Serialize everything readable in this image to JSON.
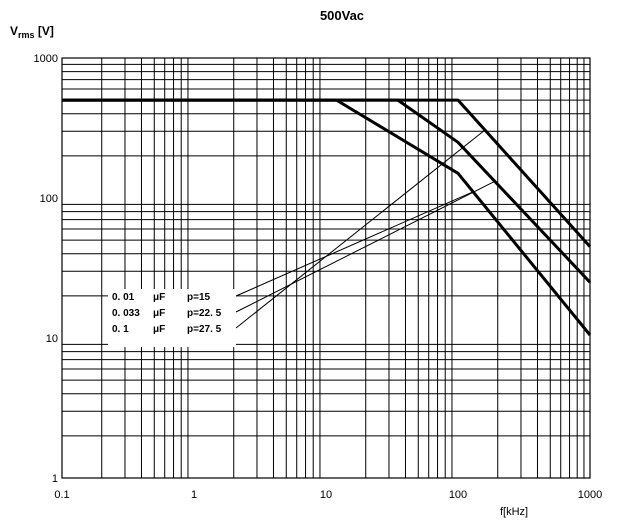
{
  "chart_data": {
    "type": "line",
    "title": "500Vac",
    "ylabel_main": "V",
    "ylabel_sub": "rms",
    "ylabel_unit": " [V]",
    "xlabel": "f[kHz]",
    "x_scale": "log",
    "y_scale": "log",
    "xlim": [
      0.1,
      1000
    ],
    "ylim": [
      1,
      1000
    ],
    "x_ticks": [
      "0.1",
      "1",
      "10",
      "100",
      "1000"
    ],
    "y_ticks": [
      "1",
      "10",
      "100",
      "1000"
    ],
    "grid": true,
    "series": [
      {
        "x": [
          0.1,
          12,
          100,
          1000
        ],
        "y": [
          500,
          500,
          150,
          10.5
        ]
      },
      {
        "x": [
          0.1,
          35,
          100,
          1000
        ],
        "y": [
          500,
          500,
          250,
          25
        ]
      },
      {
        "x": [
          0.1,
          100,
          1000
        ],
        "y": [
          500,
          500,
          45
        ]
      }
    ],
    "legend_rows": [
      {
        "cap": "0. 01",
        "unit": "μF",
        "pitch": "p=15"
      },
      {
        "cap": "0. 033",
        "unit": "μF",
        "pitch": "p=22. 5"
      },
      {
        "cap": "0. 1",
        "unit": "μF",
        "pitch": "p=27. 5"
      }
    ]
  }
}
